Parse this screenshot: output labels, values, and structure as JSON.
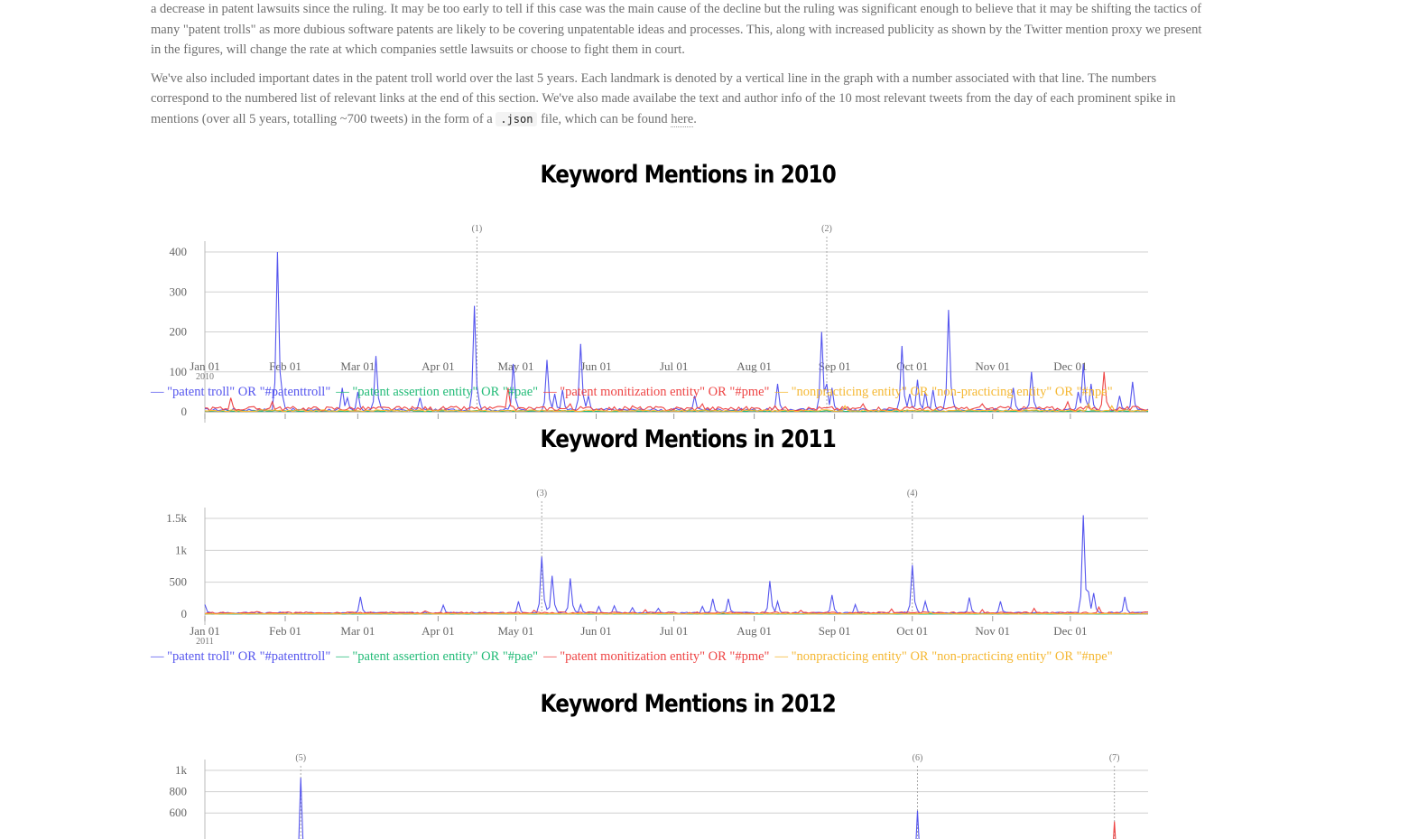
{
  "text": {
    "para1": "a decrease in patent lawsuits since the ruling. It may be too early to tell if this case was the main cause of the decline but the ruling was significant enough to believe that it may be shifting the tactics of many \"patent trolls\" as more dubious software patents are likely to be covering unpatentable ideas and processes. This, along with increased publicity as shown by the Twitter mention proxy we present in the figures, will change the rate at which companies settle lawsuits or choose to fight them in court.",
    "para2_before": "We've also included important dates in the patent troll world over the last 5 years. Each landmark is denoted by a vertical line in the graph with a number associated with that line. The numbers correspond to the numbered list of relevant links at the end of this section. We've also made availabe the text and author info of the 10 most relevant tweets from the day of each prominent spike in mentions (over all 5 years, totalling ~700 tweets) in the form of a ",
    "para2_code": ".json",
    "para2_middle": " file, which can be found ",
    "para2_link": "here",
    "para2_end": "."
  },
  "legend": [
    {
      "label": "\"patent troll\" OR \"#patenttroll\"",
      "color": "#5555ee"
    },
    {
      "label": "\"patent assertion entity\" OR \"#pae\"",
      "color": "#22bb77"
    },
    {
      "label": "\"patent monitization entity\" OR \"#pme\"",
      "color": "#ee4444"
    },
    {
      "label": "\"nonpracticing entity\" OR \"non-practicing entity\" OR \"#npe\"",
      "color": "#f5b833"
    }
  ],
  "legend_dash": "—",
  "chart_data": [
    {
      "type": "line",
      "title": "Keyword Mentions in 2010",
      "x_tick_labels": [
        "Jan 01",
        "Feb 01",
        "Mar 01",
        "Apr 01",
        "May 01",
        "Jun 01",
        "Jul 01",
        "Aug 01",
        "Sep 01",
        "Oct 01",
        "Nov 01",
        "Dec 01"
      ],
      "year_label": "2010",
      "y_ticks": [
        0,
        100,
        200,
        300,
        400
      ],
      "y_tick_labels": [
        "0",
        "100",
        "200",
        "300",
        "400"
      ],
      "ylim": [
        0,
        400
      ],
      "markers": [
        {
          "label": "(1)",
          "day": 105
        },
        {
          "label": "(2)",
          "day": 240
        }
      ],
      "grid": true,
      "series": [
        {
          "name": "\"patent troll\" OR \"#patenttroll\"",
          "peaks": [
            [
              28,
              400
            ],
            [
              30,
              40
            ],
            [
              53,
              60
            ],
            [
              55,
              35
            ],
            [
              59,
              50
            ],
            [
              66,
              140
            ],
            [
              83,
              35
            ],
            [
              104,
              265
            ],
            [
              119,
              120
            ],
            [
              132,
              130
            ],
            [
              135,
              45
            ],
            [
              138,
              55
            ],
            [
              145,
              170
            ],
            [
              148,
              40
            ],
            [
              189,
              40
            ],
            [
              221,
              70
            ],
            [
              238,
              200
            ],
            [
              240,
              70
            ],
            [
              242,
              60
            ],
            [
              269,
              165
            ],
            [
              272,
              45
            ],
            [
              275,
              80
            ],
            [
              278,
              50
            ],
            [
              281,
              55
            ],
            [
              287,
              255
            ],
            [
              312,
              60
            ],
            [
              319,
              100
            ],
            [
              337,
              50
            ],
            [
              339,
              120
            ],
            [
              342,
              70
            ],
            [
              353,
              40
            ],
            [
              358,
              75
            ]
          ],
          "baseline": 5
        },
        {
          "name": "\"patent assertion entity\" OR \"#pae\"",
          "peaks": [],
          "baseline": 2
        },
        {
          "name": "\"patent monitization entity\" OR \"#pme\"",
          "peaks": [
            [
              10,
              35
            ],
            [
              26,
              25
            ],
            [
              117,
              60
            ],
            [
              141,
              20
            ],
            [
              165,
              15
            ],
            [
              192,
              20
            ],
            [
              220,
              15
            ],
            [
              254,
              20
            ],
            [
              300,
              20
            ],
            [
              333,
              25
            ],
            [
              347,
              100
            ]
          ],
          "baseline": 8
        },
        {
          "name": "\"nonpracticing entity\" OR \"non-practicing entity\" OR \"#npe\"",
          "peaks": [
            [
              247,
              15
            ],
            [
              341,
              20
            ],
            [
              350,
              15
            ]
          ],
          "baseline": 3
        }
      ]
    },
    {
      "type": "line",
      "title": "Keyword Mentions in 2011",
      "x_tick_labels": [
        "Jan 01",
        "Feb 01",
        "Mar 01",
        "Apr 01",
        "May 01",
        "Jun 01",
        "Jul 01",
        "Aug 01",
        "Sep 01",
        "Oct 01",
        "Nov 01",
        "Dec 01"
      ],
      "year_label": "2011",
      "y_ticks": [
        0,
        500,
        1000,
        1500
      ],
      "y_tick_labels": [
        "0",
        "500",
        "1k",
        "1.5k"
      ],
      "ylim": [
        0,
        1500
      ],
      "markers": [
        {
          "label": "(3)",
          "day": 130
        },
        {
          "label": "(4)",
          "day": 273
        }
      ],
      "grid": true,
      "series": [
        {
          "name": "\"patent troll\" OR \"#patenttroll\"",
          "peaks": [
            [
              0,
              150
            ],
            [
              60,
              270
            ],
            [
              92,
              140
            ],
            [
              121,
              200
            ],
            [
              130,
              900
            ],
            [
              134,
              600
            ],
            [
              141,
              560
            ],
            [
              145,
              150
            ],
            [
              152,
              120
            ],
            [
              158,
              130
            ],
            [
              165,
              100
            ],
            [
              175,
              90
            ],
            [
              192,
              120
            ],
            [
              196,
              240
            ],
            [
              202,
              240
            ],
            [
              218,
              520
            ],
            [
              221,
              200
            ],
            [
              242,
              300
            ],
            [
              251,
              150
            ],
            [
              273,
              770
            ],
            [
              278,
              200
            ],
            [
              295,
              260
            ],
            [
              307,
              200
            ],
            [
              339,
              1550
            ],
            [
              341,
              350
            ],
            [
              343,
              330
            ],
            [
              355,
              270
            ]
          ],
          "baseline": 20
        },
        {
          "name": "\"patent assertion entity\" OR \"#pae\"",
          "peaks": [],
          "baseline": 4
        },
        {
          "name": "\"patent monitization entity\" OR \"#pme\"",
          "peaks": [
            [
              20,
              40
            ],
            [
              85,
              50
            ],
            [
              127,
              60
            ],
            [
              170,
              70
            ],
            [
              230,
              60
            ],
            [
              265,
              80
            ],
            [
              300,
              70
            ],
            [
              320,
              90
            ],
            [
              345,
              110
            ]
          ],
          "baseline": 20
        },
        {
          "name": "\"nonpracticing entity\" OR \"non-practicing entity\" OR \"#npe\"",
          "peaks": [
            [
              200,
              30
            ],
            [
              280,
              30
            ]
          ],
          "baseline": 6
        }
      ]
    },
    {
      "type": "line",
      "title": "Keyword Mentions in 2012",
      "x_tick_labels": [],
      "year_label": "",
      "y_ticks": [
        600,
        800,
        1000
      ],
      "y_tick_labels": [
        "600",
        "800",
        "1k"
      ],
      "ylim": [
        0,
        1000
      ],
      "markers": [
        {
          "label": "(5)",
          "day": 37
        },
        {
          "label": "(6)",
          "day": 275
        },
        {
          "label": "(7)",
          "day": 351
        }
      ],
      "grid": true,
      "series": [
        {
          "name": "\"patent troll\" OR \"#patenttroll\"",
          "peaks": [
            [
              37,
              930
            ],
            [
              275,
              620
            ]
          ],
          "baseline": 30
        },
        {
          "name": "\"patent monitization entity\" OR \"#pme\"",
          "peaks": [
            [
              351,
              520
            ]
          ],
          "baseline": 20
        }
      ]
    }
  ]
}
